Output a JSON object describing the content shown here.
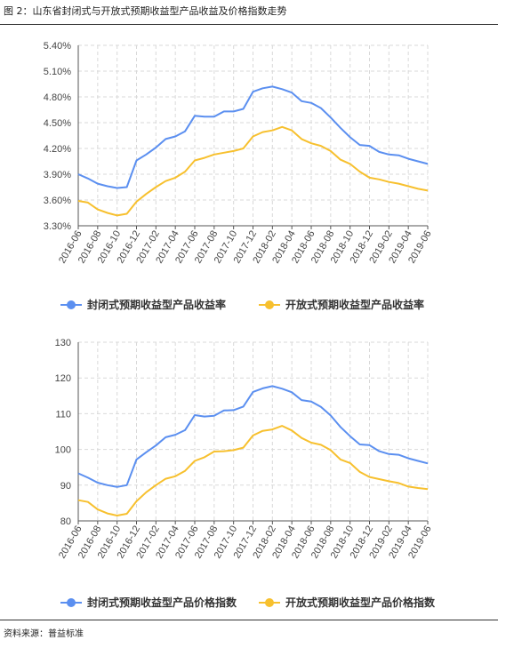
{
  "figure": {
    "title": "图 2：山东省封闭式与开放式预期收益型产品收益及价格指数走势",
    "source": "资料来源：普益标准"
  },
  "colors": {
    "series1": "#5b8ff0",
    "series2": "#f7c02e",
    "grid": "#d9d9d9",
    "axis": "#555555"
  },
  "chart_data": [
    {
      "type": "line",
      "title": "",
      "xlabel": "",
      "ylabel": "",
      "ylim": [
        3.3,
        5.4
      ],
      "yticks": [
        "3.30%",
        "3.60%",
        "3.90%",
        "4.20%",
        "4.50%",
        "4.80%",
        "5.10%",
        "5.40%"
      ],
      "x_ticks": [
        "2016-06",
        "2016-08",
        "2016-10",
        "2016-12",
        "2017-02",
        "2017-04",
        "2017-06",
        "2017-08",
        "2017-10",
        "2017-12",
        "2018-02",
        "2018-04",
        "2018-06",
        "2018-08",
        "2018-10",
        "2018-12",
        "2019-02",
        "2019-04",
        "2019-06"
      ],
      "grid": true,
      "legend_position": "bottom",
      "series": [
        {
          "name": "封闭式预期收益型产品收益率",
          "values": [
            3.9,
            3.85,
            3.79,
            3.76,
            3.74,
            3.75,
            4.06,
            4.13,
            4.21,
            4.31,
            4.34,
            4.4,
            4.58,
            4.57,
            4.57,
            4.63,
            4.63,
            4.66,
            4.86,
            4.9,
            4.92,
            4.89,
            4.85,
            4.75,
            4.73,
            4.67,
            4.56,
            4.44,
            4.33,
            4.24,
            4.23,
            4.16,
            4.13,
            4.12,
            4.08,
            4.05,
            4.02
          ]
        },
        {
          "name": "开放式预期收益型产品收益率",
          "values": [
            3.59,
            3.57,
            3.49,
            3.45,
            3.42,
            3.44,
            3.58,
            3.67,
            3.75,
            3.82,
            3.86,
            3.93,
            4.06,
            4.09,
            4.13,
            4.15,
            4.17,
            4.2,
            4.34,
            4.39,
            4.41,
            4.45,
            4.41,
            4.31,
            4.26,
            4.23,
            4.17,
            4.07,
            4.02,
            3.93,
            3.86,
            3.84,
            3.81,
            3.79,
            3.76,
            3.73,
            3.71
          ]
        }
      ]
    },
    {
      "type": "line",
      "title": "",
      "xlabel": "",
      "ylabel": "",
      "ylim": [
        80,
        130
      ],
      "yticks": [
        "80",
        "90",
        "100",
        "110",
        "120",
        "130"
      ],
      "x_ticks": [
        "2016-06",
        "2016-08",
        "2016-10",
        "2016-12",
        "2017-02",
        "2017-04",
        "2017-06",
        "2017-08",
        "2017-10",
        "2017-12",
        "2018-02",
        "2018-04",
        "2018-06",
        "2018-08",
        "2018-10",
        "2018-12",
        "2019-02",
        "2019-04",
        "2019-06"
      ],
      "grid": true,
      "legend_position": "bottom",
      "series": [
        {
          "name": "封闭式预期收益型产品价格指数",
          "values": [
            93.3,
            92.1,
            90.7,
            90.0,
            89.5,
            90.0,
            97.2,
            99.2,
            101.1,
            103.4,
            104.1,
            105.4,
            109.6,
            109.2,
            109.4,
            110.9,
            111.0,
            112.0,
            116.1,
            117.1,
            117.7,
            117.0,
            116.0,
            113.8,
            113.4,
            111.9,
            109.5,
            106.3,
            103.7,
            101.4,
            101.2,
            99.5,
            98.7,
            98.5,
            97.5,
            96.8,
            96.1
          ]
        },
        {
          "name": "开放式预期收益型产品价格指数",
          "values": [
            85.8,
            85.3,
            83.2,
            82.1,
            81.5,
            82.0,
            85.5,
            88.0,
            90.0,
            91.8,
            92.5,
            94.0,
            96.8,
            97.8,
            99.4,
            99.5,
            99.8,
            100.5,
            103.9,
            105.2,
            105.6,
            106.6,
            105.3,
            103.2,
            101.9,
            101.3,
            99.8,
            97.2,
            96.2,
            93.7,
            92.3,
            91.7,
            91.1,
            90.6,
            89.6,
            89.2,
            88.9
          ]
        }
      ]
    }
  ]
}
